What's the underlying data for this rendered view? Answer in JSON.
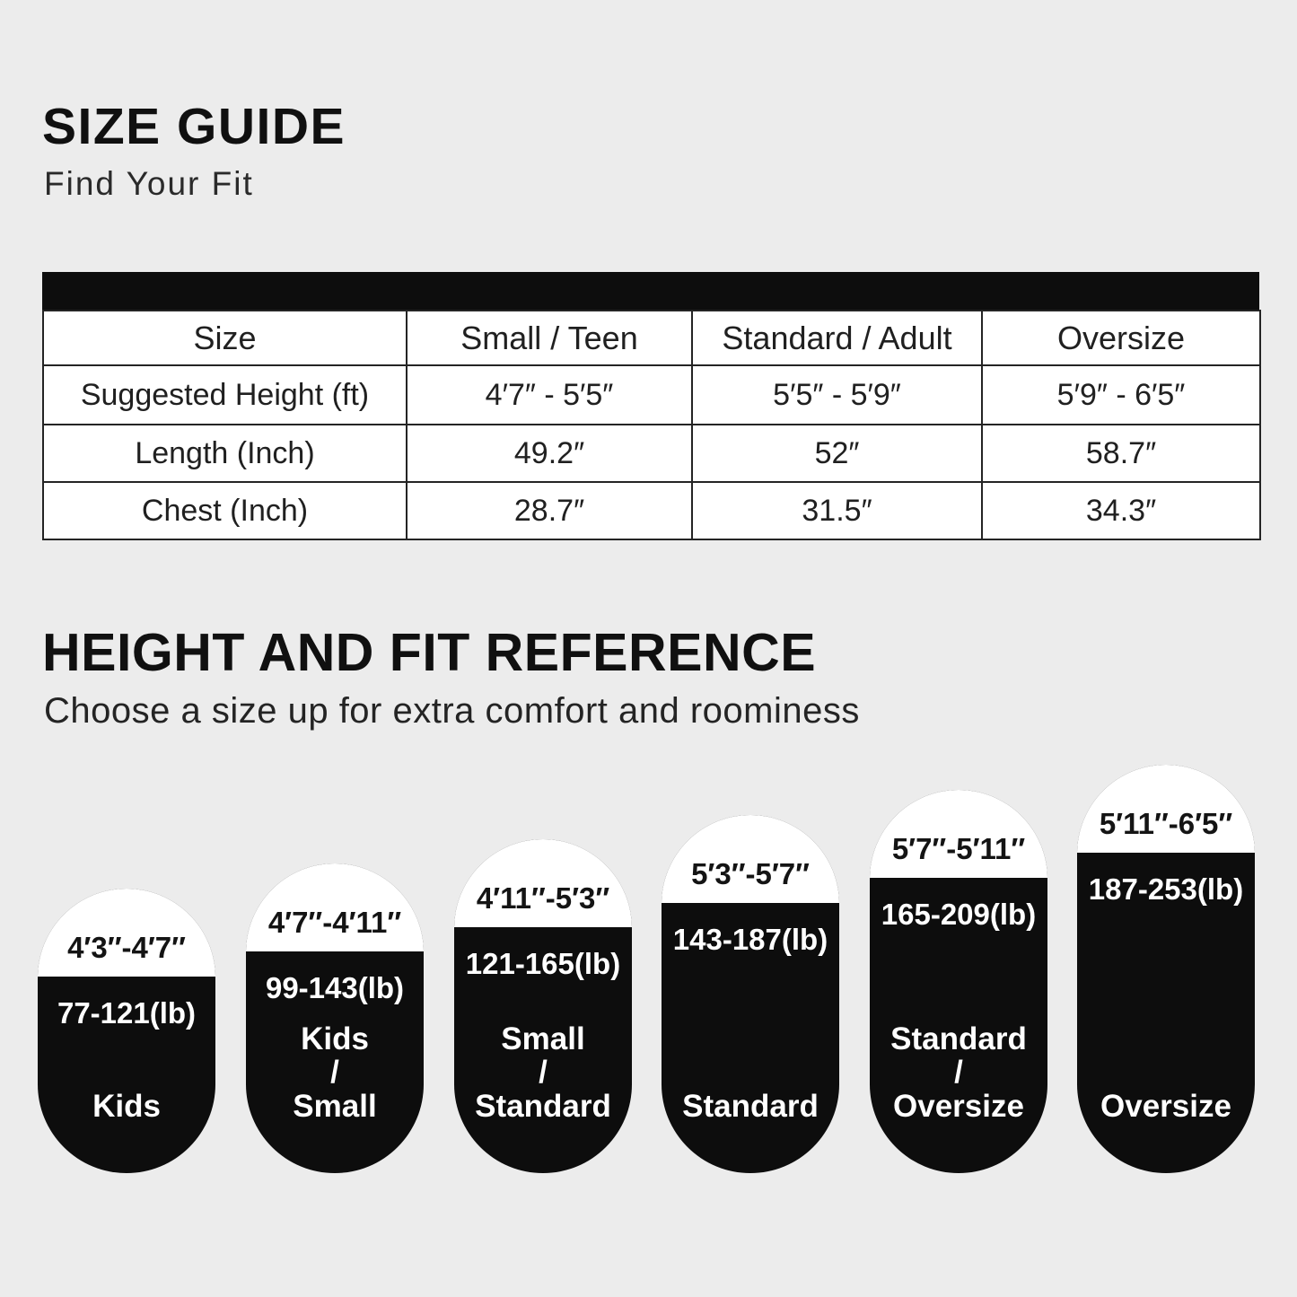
{
  "colors": {
    "background": "#ececec",
    "ink": "#0d0d0d",
    "paper": "#ffffff",
    "line": "#242424",
    "text": "#1e1e1e"
  },
  "size_guide": {
    "title": "SIZE GUIDE",
    "subtitle": "Find Your Fit",
    "table": {
      "headers": [
        "Size",
        "Small / Teen",
        "Standard / Adult",
        "Oversize"
      ],
      "rows": [
        {
          "label": "Suggested Height (ft)",
          "values": [
            "4′7″ - 5′5″",
            "5′5″ - 5′9″",
            "5′9″ - 6′5″"
          ]
        },
        {
          "label": "Length (Inch)",
          "values": [
            "49.2″",
            "52″",
            "58.7″"
          ]
        },
        {
          "label": "Chest (Inch)",
          "values": [
            "28.7″",
            "31.5″",
            "34.3″"
          ]
        }
      ]
    }
  },
  "fit_reference": {
    "title": "HEIGHT AND FIT REFERENCE",
    "subtitle": "Choose a size up for extra comfort and roominess",
    "pills": [
      {
        "height_range": "4′3″-4′7″",
        "weight_range": "77-121(lb)",
        "size_label": [
          "Kids"
        ]
      },
      {
        "height_range": "4′7″-4′11″",
        "weight_range": "99-143(lb)",
        "size_label": [
          "Kids",
          "/",
          "Small"
        ]
      },
      {
        "height_range": "4′11″-5′3″",
        "weight_range": "121-165(lb)",
        "size_label": [
          "Small",
          "/",
          "Standard"
        ]
      },
      {
        "height_range": "5′3″-5′7″",
        "weight_range": "143-187(lb)",
        "size_label": [
          "Standard"
        ]
      },
      {
        "height_range": "5′7″-5′11″",
        "weight_range": "165-209(lb)",
        "size_label": [
          "Standard",
          "/",
          "Oversize"
        ]
      },
      {
        "height_range": "5′11″-6′5″",
        "weight_range": "187-253(lb)",
        "size_label": [
          "Oversize"
        ]
      }
    ]
  }
}
